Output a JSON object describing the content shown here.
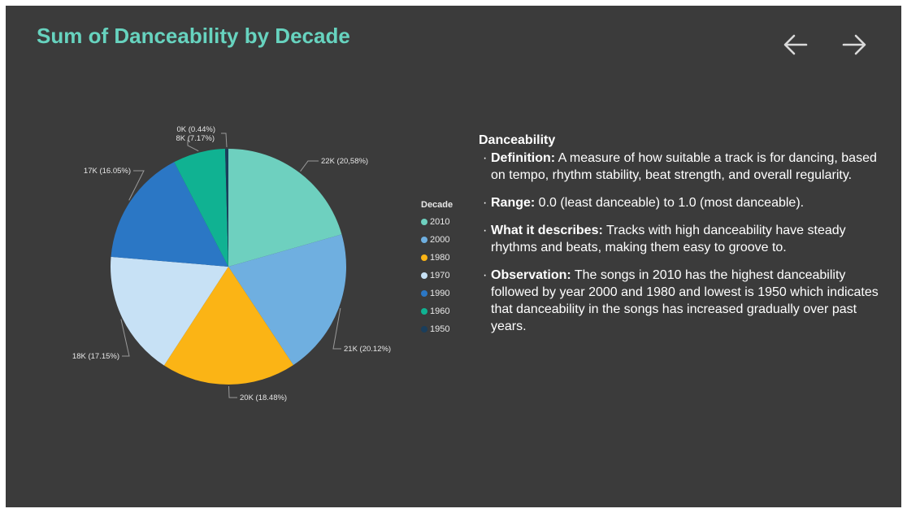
{
  "title": "Sum of Danceability by Decade",
  "nav": {
    "prev_icon": "arrow-left-icon",
    "next_icon": "arrow-right-icon"
  },
  "colors": {
    "background": "#3b3b3b",
    "title": "#67d3bf",
    "text": "#ffffff"
  },
  "chart_data": {
    "type": "pie",
    "legend_title": "Decade",
    "legend_placement": "right",
    "slices": [
      {
        "category": "2010",
        "value_label": "22K",
        "percent": 20.58,
        "percent_label": "20,58%",
        "color": "#6ed0bf"
      },
      {
        "category": "2000",
        "value_label": "21K",
        "percent": 20.12,
        "percent_label": "20.12%",
        "color": "#6fafe0"
      },
      {
        "category": "1980",
        "value_label": "20K",
        "percent": 18.48,
        "percent_label": "18.48%",
        "color": "#fbb415"
      },
      {
        "category": "1970",
        "value_label": "18K",
        "percent": 17.15,
        "percent_label": "17.15%",
        "color": "#c7e1f5"
      },
      {
        "category": "1990",
        "value_label": "17K",
        "percent": 16.05,
        "percent_label": "16.05%",
        "color": "#2b77c5"
      },
      {
        "category": "1960",
        "value_label": "8K",
        "percent": 7.17,
        "percent_label": "7.17%",
        "color": "#10b292"
      },
      {
        "category": "1950",
        "value_label": "0K",
        "percent": 0.44,
        "percent_label": "0.44%",
        "color": "#1a3e5c"
      }
    ]
  },
  "info": {
    "heading": "Danceability",
    "items": [
      {
        "term": "Definition:",
        "text": " A measure of how suitable a track is for dancing, based on tempo, rhythm stability, beat strength, and overall regularity."
      },
      {
        "term": "Range:",
        "text": " 0.0 (least danceable) to 1.0 (most danceable)."
      },
      {
        "term": "What it describes:",
        "text": " Tracks with high danceability have steady rhythms and beats, making them easy to groove to."
      },
      {
        "term": "Observation:",
        "text": " The songs in 2010 has the highest danceability followed by year 2000 and 1980 and lowest is 1950 which indicates that danceability in the songs has increased gradually over past years."
      }
    ]
  }
}
